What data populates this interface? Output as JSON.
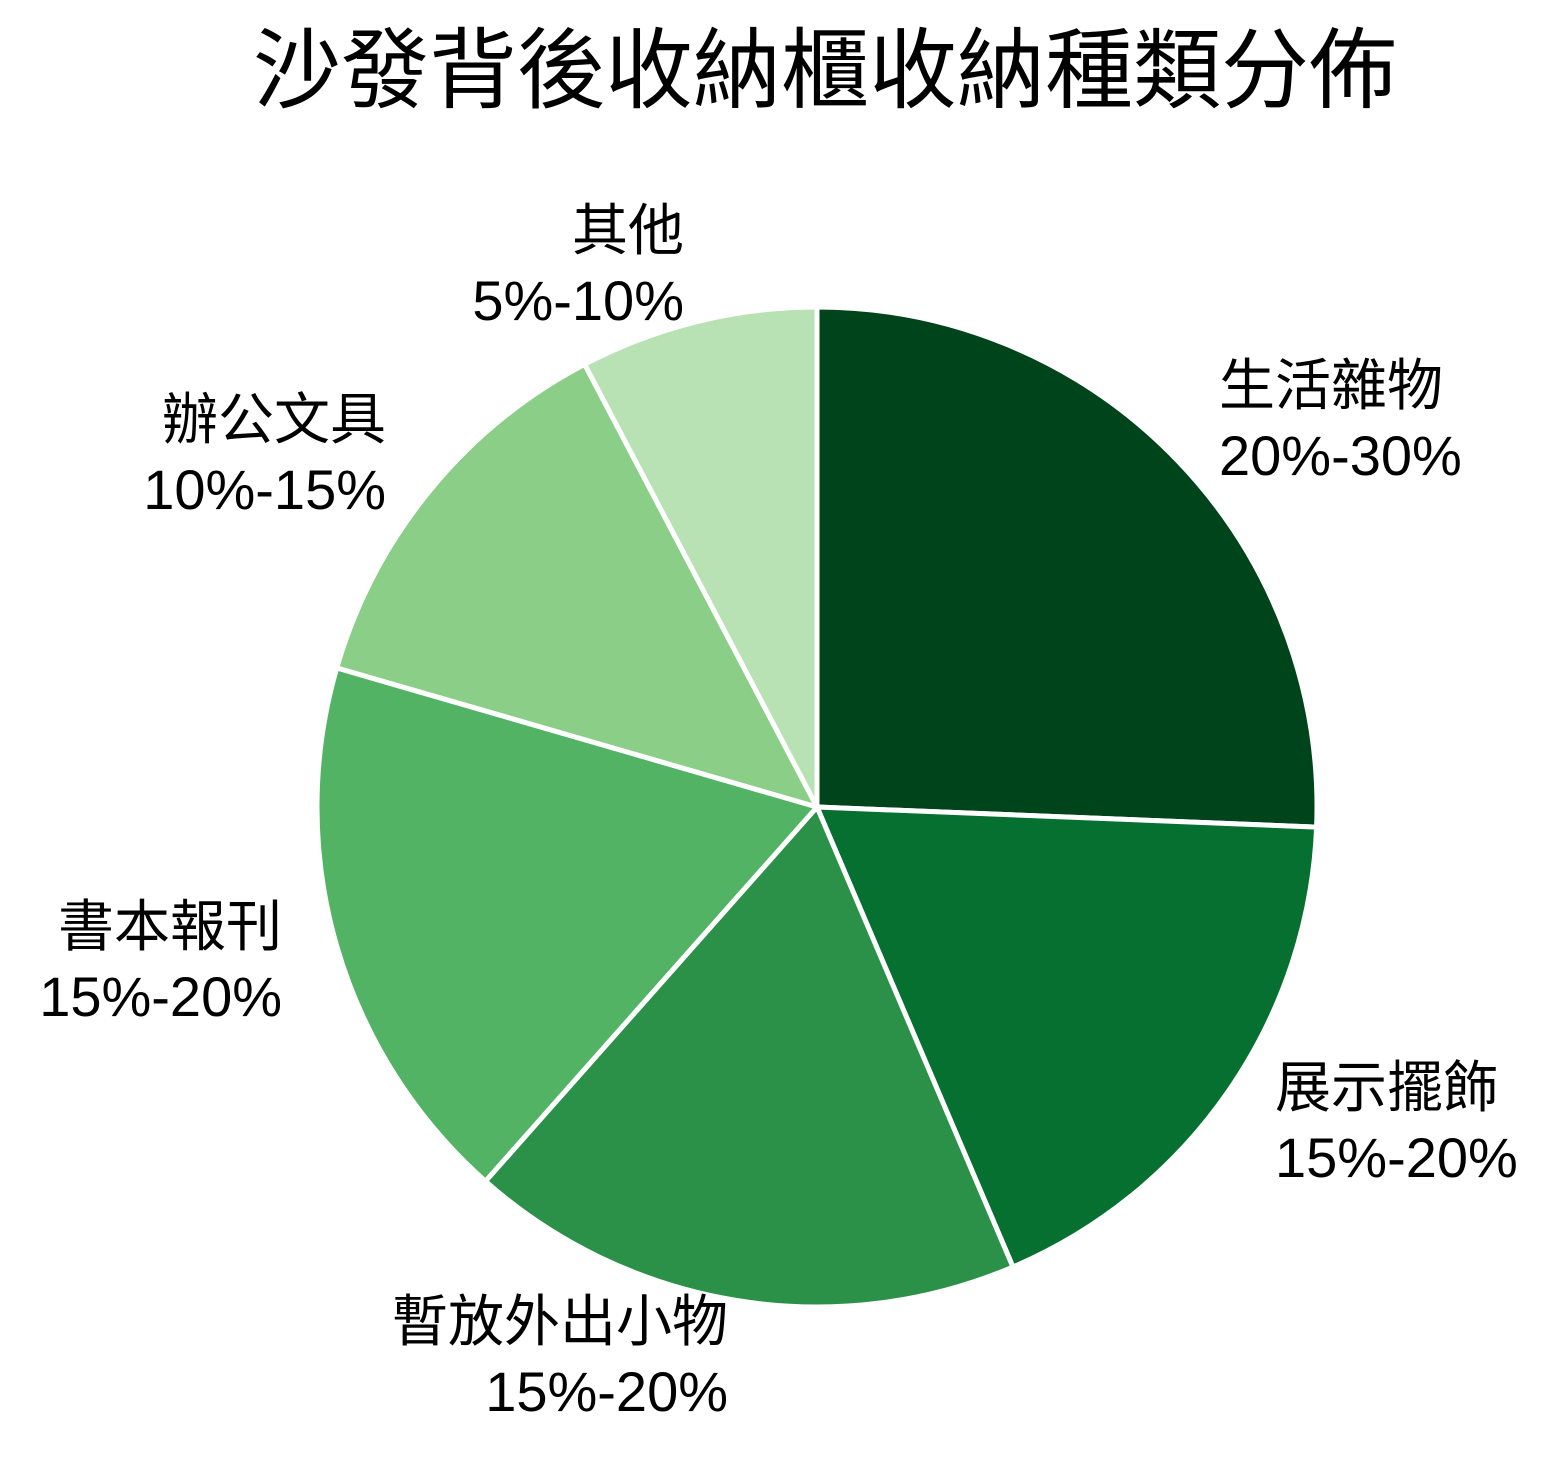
{
  "chart_data": {
    "type": "pie",
    "title": "沙發背後收納櫃收納種類分佈",
    "start_angle_deg": 0,
    "direction": "clockwise",
    "slices": [
      {
        "label": "生活雜物",
        "range": "20%-30%",
        "value": 25,
        "color": "#00441b"
      },
      {
        "label": "展示擺飾",
        "range": "15%-20%",
        "value": 17.5,
        "color": "#067030"
      },
      {
        "label": "暫放外出小物",
        "range": "15%-20%",
        "value": 17.5,
        "color": "#2b9148"
      },
      {
        "label": "書本報刊",
        "range": "15%-20%",
        "value": 17.5,
        "color": "#52b365"
      },
      {
        "label": "辦公文具",
        "range": "10%-15%",
        "value": 12.5,
        "color": "#8ace87"
      },
      {
        "label": "其他",
        "range": "5%-10%",
        "value": 7.5,
        "color": "#b8e1b4"
      }
    ],
    "label_distance": 1.114,
    "stroke": {
      "color": "#ffffff",
      "width": 5
    },
    "background": "#ffffff",
    "legend": "none"
  }
}
